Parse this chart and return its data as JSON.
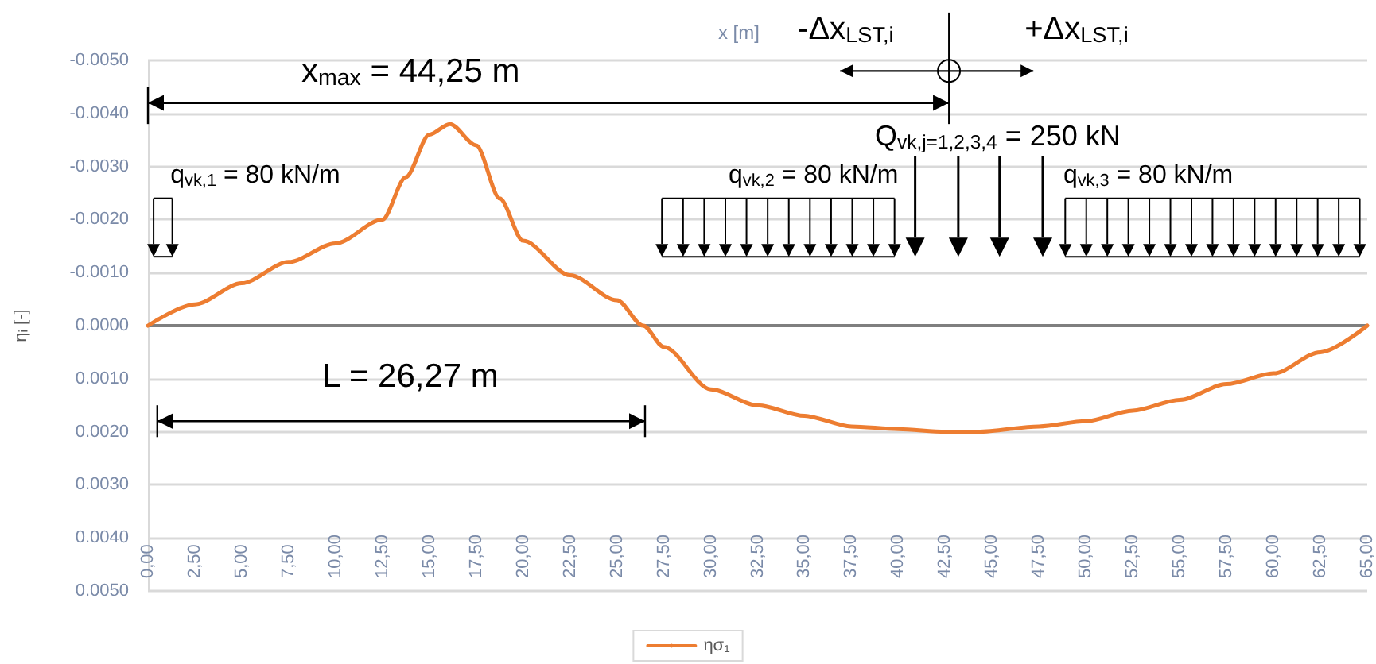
{
  "chart_data": {
    "type": "line",
    "xlabel": "x [m]",
    "ylabel": "ηᵢ [-]",
    "x": [
      0,
      2.5,
      5,
      7.5,
      10,
      12.5,
      13.75,
      15,
      16.1,
      17.5,
      18.75,
      20,
      22.5,
      25,
      26.4,
      27.5,
      30,
      32.5,
      35,
      37.5,
      40,
      42.5,
      44.25,
      47.5,
      50,
      52.5,
      55,
      57.5,
      60,
      62.5,
      65
    ],
    "series": [
      {
        "name": "ησ₁",
        "color": "#ed7d31",
        "values": [
          0,
          -0.0004,
          -0.0008,
          -0.0012,
          -0.00155,
          -0.002,
          -0.0028,
          -0.0036,
          -0.0038,
          -0.0034,
          -0.0024,
          -0.0016,
          -0.00095,
          -0.00048,
          0,
          0.0004,
          0.0012,
          0.0015,
          0.0017,
          0.0019,
          0.00195,
          0.002,
          0.002,
          0.0019,
          0.0018,
          0.0016,
          0.0014,
          0.0011,
          0.0009,
          0.0005,
          0
        ]
      }
    ],
    "xlim": [
      0,
      65
    ],
    "xticks": [
      {
        "value": 0,
        "label": "0,00"
      },
      {
        "value": 2.5,
        "label": "2,50"
      },
      {
        "value": 5,
        "label": "5,00"
      },
      {
        "value": 7.5,
        "label": "7,50"
      },
      {
        "value": 10,
        "label": "10,00"
      },
      {
        "value": 12.5,
        "label": "12,50"
      },
      {
        "value": 15,
        "label": "15,00"
      },
      {
        "value": 17.5,
        "label": "17,50"
      },
      {
        "value": 20,
        "label": "20,00"
      },
      {
        "value": 22.5,
        "label": "22,50"
      },
      {
        "value": 25,
        "label": "25,00"
      },
      {
        "value": 27.5,
        "label": "27,50"
      },
      {
        "value": 30,
        "label": "30,00"
      },
      {
        "value": 32.5,
        "label": "32,50"
      },
      {
        "value": 35,
        "label": "35,00"
      },
      {
        "value": 37.5,
        "label": "37,50"
      },
      {
        "value": 40,
        "label": "40,00"
      },
      {
        "value": 42.5,
        "label": "42,50"
      },
      {
        "value": 45,
        "label": "45,00"
      },
      {
        "value": 47.5,
        "label": "47,50"
      },
      {
        "value": 50,
        "label": "50,00"
      },
      {
        "value": 52.5,
        "label": "52,50"
      },
      {
        "value": 55,
        "label": "55,00"
      },
      {
        "value": 57.5,
        "label": "57,50"
      },
      {
        "value": 60,
        "label": "60,00"
      },
      {
        "value": 62.5,
        "label": "62,50"
      },
      {
        "value": 65,
        "label": "65,00"
      }
    ],
    "ylim": [
      0.005,
      -0.005
    ],
    "yticks": [
      {
        "value": -0.005,
        "label": "-0.0050"
      },
      {
        "value": -0.004,
        "label": "-0.0040"
      },
      {
        "value": -0.003,
        "label": "-0.0030"
      },
      {
        "value": -0.002,
        "label": "-0.0020"
      },
      {
        "value": -0.001,
        "label": "-0.0010"
      },
      {
        "value": 0,
        "label": "0.0000"
      },
      {
        "value": 0.001,
        "label": "0.0010"
      },
      {
        "value": 0.002,
        "label": "0.0020"
      },
      {
        "value": 0.003,
        "label": "0.0030"
      },
      {
        "value": 0.004,
        "label": "0.0040"
      },
      {
        "value": 0.005,
        "label": "0.0050"
      }
    ],
    "grid": "y",
    "legend": "bottom",
    "marker": "none",
    "line_style": "solid",
    "annotations": [
      "x$_{max}$ = 44,25 m",
      "-Δx$_{LST,i}$",
      "+Δx$_{LST,i}$",
      "Q$_{vk,j=1,2,3,4}$ = 250 kN",
      "q$_{vk,1}$ = 80 kN/m",
      "q$_{vk,2}$ = 80 kN/m",
      "q$_{vk,3}$ = 80 kN/m",
      "L =  26,27 m"
    ]
  }
}
